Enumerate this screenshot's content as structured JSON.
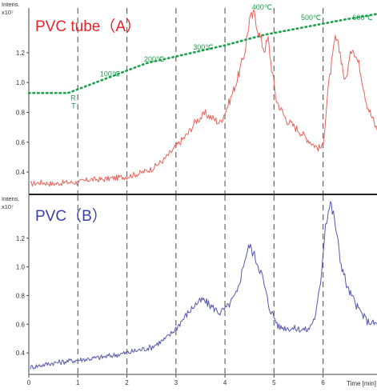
{
  "chart_data": [
    {
      "type": "line",
      "title": "PVC tube（A）",
      "ylabel": "Intens.",
      "yscale_label": "x10⁷",
      "xlim": [
        0,
        7.1
      ],
      "ylim": [
        0.25,
        1.5
      ],
      "yticks": [
        "0.4",
        "0.6",
        "0.8",
        "1.0",
        "1.2"
      ],
      "grid": "dashed vertical lines at x = 1, 2, 3, 4, 5, 6",
      "colors": {
        "signal": "#e8635a",
        "temperature": "#1aa04a",
        "title": "#e8232a"
      },
      "series": [
        {
          "values": [
            [
              0.03,
              0.32
            ],
            [
              0.25,
              0.33
            ],
            [
              0.5,
              0.32
            ],
            [
              0.75,
              0.33
            ],
            [
              1.0,
              0.33
            ],
            [
              1.25,
              0.35
            ],
            [
              1.5,
              0.35
            ],
            [
              1.75,
              0.36
            ],
            [
              2.0,
              0.37
            ],
            [
              2.25,
              0.39
            ],
            [
              2.5,
              0.42
            ],
            [
              2.75,
              0.48
            ],
            [
              3.0,
              0.57
            ],
            [
              3.25,
              0.66
            ],
            [
              3.4,
              0.74
            ],
            [
              3.6,
              0.79
            ],
            [
              3.75,
              0.76
            ],
            [
              3.9,
              0.73
            ],
            [
              4.0,
              0.8
            ],
            [
              4.1,
              0.88
            ],
            [
              4.25,
              1.02
            ],
            [
              4.4,
              1.2
            ],
            [
              4.5,
              1.42
            ],
            [
              4.6,
              1.46
            ],
            [
              4.7,
              1.32
            ],
            [
              4.8,
              1.22
            ],
            [
              4.88,
              1.29
            ],
            [
              4.95,
              1.1
            ],
            [
              5.05,
              0.88
            ],
            [
              5.25,
              0.75
            ],
            [
              5.5,
              0.68
            ],
            [
              5.75,
              0.6
            ],
            [
              5.9,
              0.56
            ],
            [
              6.0,
              0.57
            ],
            [
              6.1,
              0.95
            ],
            [
              6.25,
              1.3
            ],
            [
              6.35,
              1.2
            ],
            [
              6.45,
              1.0
            ],
            [
              6.6,
              1.25
            ],
            [
              6.75,
              1.1
            ],
            [
              6.9,
              0.85
            ],
            [
              7.1,
              0.68
            ]
          ]
        },
        {
          "name": "temperature",
          "values": [
            [
              0.0,
              0.93
            ],
            [
              0.8,
              0.93
            ],
            [
              1.6,
              1.03
            ],
            [
              2.4,
              1.13
            ],
            [
              3.2,
              1.19
            ],
            [
              4.0,
              1.25
            ],
            [
              4.8,
              1.32
            ],
            [
              5.6,
              1.37
            ],
            [
              6.4,
              1.42
            ],
            [
              7.1,
              1.46
            ]
          ]
        }
      ],
      "annotations": [
        "RT",
        "100℃",
        "200℃",
        "300℃",
        "400℃",
        "500℃",
        "600℃"
      ]
    },
    {
      "type": "line",
      "title": "PVC（B）",
      "xlabel": "Time [min]",
      "ylabel": "Intens.",
      "yscale_label": "x10⁷",
      "xlim": [
        0,
        7.1
      ],
      "ylim": [
        0.25,
        1.5
      ],
      "xticks": [
        "0",
        "1",
        "2",
        "3",
        "4",
        "5",
        "6"
      ],
      "yticks": [
        "0.4",
        "0.6",
        "0.8",
        "1.0",
        "1.2"
      ],
      "grid": "dashed vertical lines at x = 1, 2, 3, 4, 5, 6",
      "colors": {
        "signal": "#5557b0",
        "title": "#3a3fa8"
      },
      "series": [
        {
          "values": [
            [
              0.03,
              0.3
            ],
            [
              0.5,
              0.33
            ],
            [
              1.0,
              0.35
            ],
            [
              1.5,
              0.37
            ],
            [
              2.0,
              0.4
            ],
            [
              2.5,
              0.44
            ],
            [
              2.8,
              0.5
            ],
            [
              3.0,
              0.57
            ],
            [
              3.2,
              0.66
            ],
            [
              3.4,
              0.74
            ],
            [
              3.55,
              0.77
            ],
            [
              3.7,
              0.73
            ],
            [
              3.9,
              0.68
            ],
            [
              4.05,
              0.72
            ],
            [
              4.25,
              0.82
            ],
            [
              4.4,
              1.05
            ],
            [
              4.5,
              1.15
            ],
            [
              4.6,
              1.08
            ],
            [
              4.75,
              0.95
            ],
            [
              4.9,
              0.72
            ],
            [
              5.1,
              0.58
            ],
            [
              5.4,
              0.57
            ],
            [
              5.7,
              0.56
            ],
            [
              5.85,
              0.66
            ],
            [
              5.95,
              0.9
            ],
            [
              6.05,
              1.3
            ],
            [
              6.15,
              1.45
            ],
            [
              6.25,
              1.3
            ],
            [
              6.35,
              1.05
            ],
            [
              6.5,
              0.85
            ],
            [
              6.7,
              0.72
            ],
            [
              6.9,
              0.62
            ],
            [
              7.1,
              0.6
            ]
          ]
        }
      ]
    }
  ]
}
